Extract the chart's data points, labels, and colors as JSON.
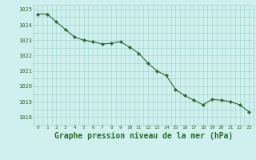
{
  "x": [
    0,
    1,
    2,
    3,
    4,
    5,
    6,
    7,
    8,
    9,
    10,
    11,
    12,
    13,
    14,
    15,
    16,
    17,
    18,
    19,
    20,
    21,
    22,
    23
  ],
  "y": [
    1024.7,
    1024.7,
    1024.2,
    1023.7,
    1023.2,
    1023.0,
    1022.9,
    1022.75,
    1022.8,
    1022.9,
    1022.55,
    1022.15,
    1021.5,
    1021.0,
    1020.7,
    1019.8,
    1019.4,
    1019.1,
    1018.8,
    1019.15,
    1019.1,
    1019.0,
    1018.8,
    1018.35
  ],
  "line_color": "#2d6a2d",
  "marker": "D",
  "marker_size": 2.2,
  "bg_color": "#cff0ee",
  "grid_color": "#9ecec8",
  "title": "Graphe pression niveau de la mer (hPa)",
  "xlabel_fontsize": 7.0,
  "ylim_min": 1017.5,
  "ylim_max": 1025.3,
  "yticks": [
    1018,
    1019,
    1020,
    1021,
    1022,
    1023,
    1024,
    1025
  ],
  "xticks": [
    0,
    1,
    2,
    3,
    4,
    5,
    6,
    7,
    8,
    9,
    10,
    11,
    12,
    13,
    14,
    15,
    16,
    17,
    18,
    19,
    20,
    21,
    22,
    23
  ],
  "tick_color": "#2d6a2d"
}
